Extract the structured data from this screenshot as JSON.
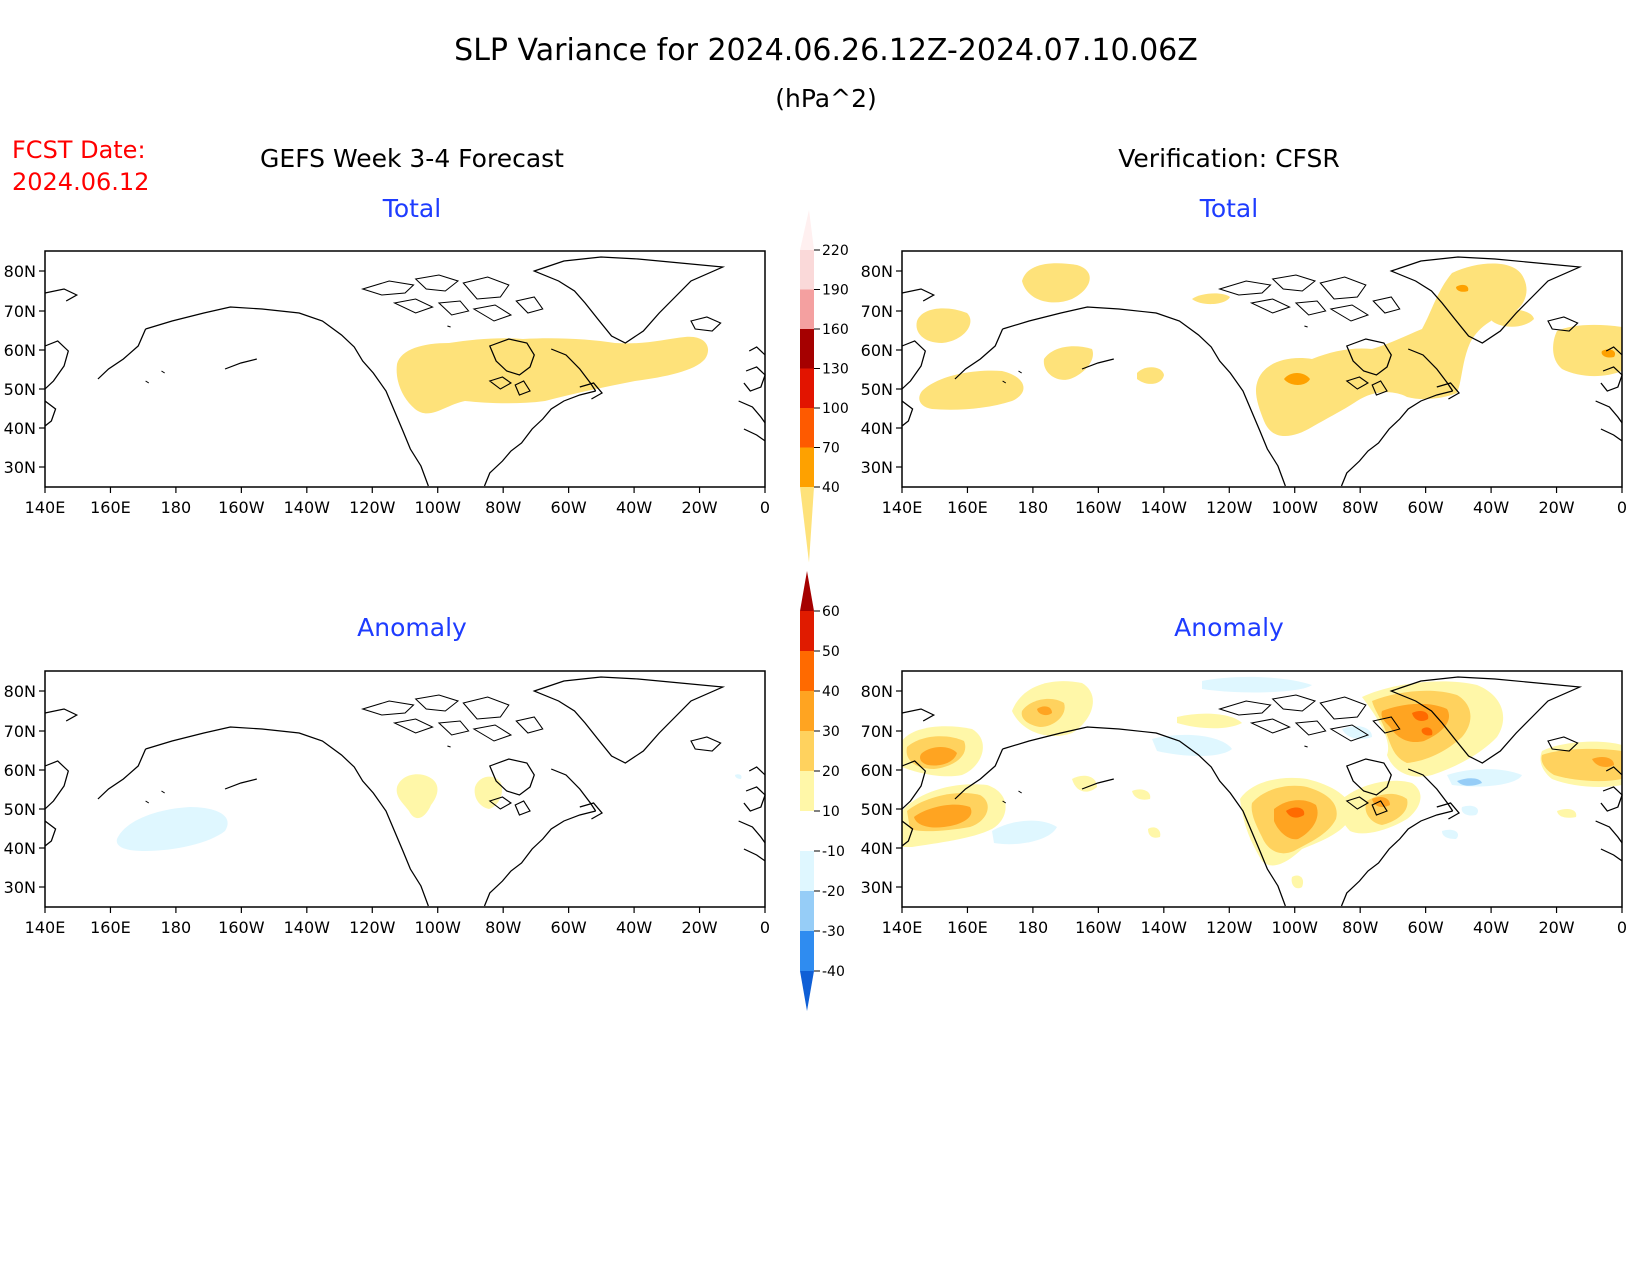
{
  "header": {
    "title": "SLP Variance for 2024.06.26.12Z-2024.07.10.06Z",
    "units": "(hPa^2)",
    "fcst_label": "FCST Date:",
    "fcst_date": "2024.06.12",
    "left_column_title": "GEFS Week 3-4 Forecast",
    "right_column_title": "Verification: CFSR"
  },
  "panels": {
    "forecast_total": {
      "label": "Total"
    },
    "verification_total": {
      "label": "Total"
    },
    "forecast_anomaly": {
      "label": "Anomaly"
    },
    "verification_anomaly": {
      "label": "Anomaly"
    }
  },
  "axes": {
    "lat_labels": [
      "80N",
      "70N",
      "60N",
      "50N",
      "40N",
      "30N"
    ],
    "lon_labels": [
      "140E",
      "160E",
      "180",
      "160W",
      "140W",
      "120W",
      "100W",
      "80W",
      "60W",
      "40W",
      "20W",
      "0"
    ]
  },
  "total_colorbar": {
    "levels": [
      "40",
      "70",
      "100",
      "130",
      "160",
      "190",
      "220"
    ],
    "colors": [
      "#fee27a",
      "#fea100",
      "#fe5a00",
      "#e21400",
      "#a50000",
      "#f4a0a0",
      "#fad9d9",
      "#fff0f0"
    ]
  },
  "anomaly_colorbar": {
    "levels": [
      "-40",
      "-30",
      "-20",
      "-10",
      "10",
      "20",
      "30",
      "40",
      "50",
      "60"
    ],
    "colors": [
      "#0f5fd6",
      "#2f8cf0",
      "#96cdf7",
      "#dff7ff",
      "#ffffff",
      "#fff7a8",
      "#ffd25e",
      "#ffa421",
      "#ff6a00",
      "#e01b00",
      "#a50000"
    ]
  },
  "colors": {
    "title_text": "#000000",
    "fcst_text": "#ff0000",
    "panel_label_text": "#1e3cff",
    "total_fill": "#fee27a",
    "total_orange": "#fea100",
    "anom_light_yellow": "#fff7a8",
    "anom_gold": "#ffd25e",
    "anom_orange": "#ffa421",
    "anom_dark_orange": "#ff6a00",
    "anom_light_blue": "#dff7ff",
    "anom_blue": "#96cdf7"
  }
}
